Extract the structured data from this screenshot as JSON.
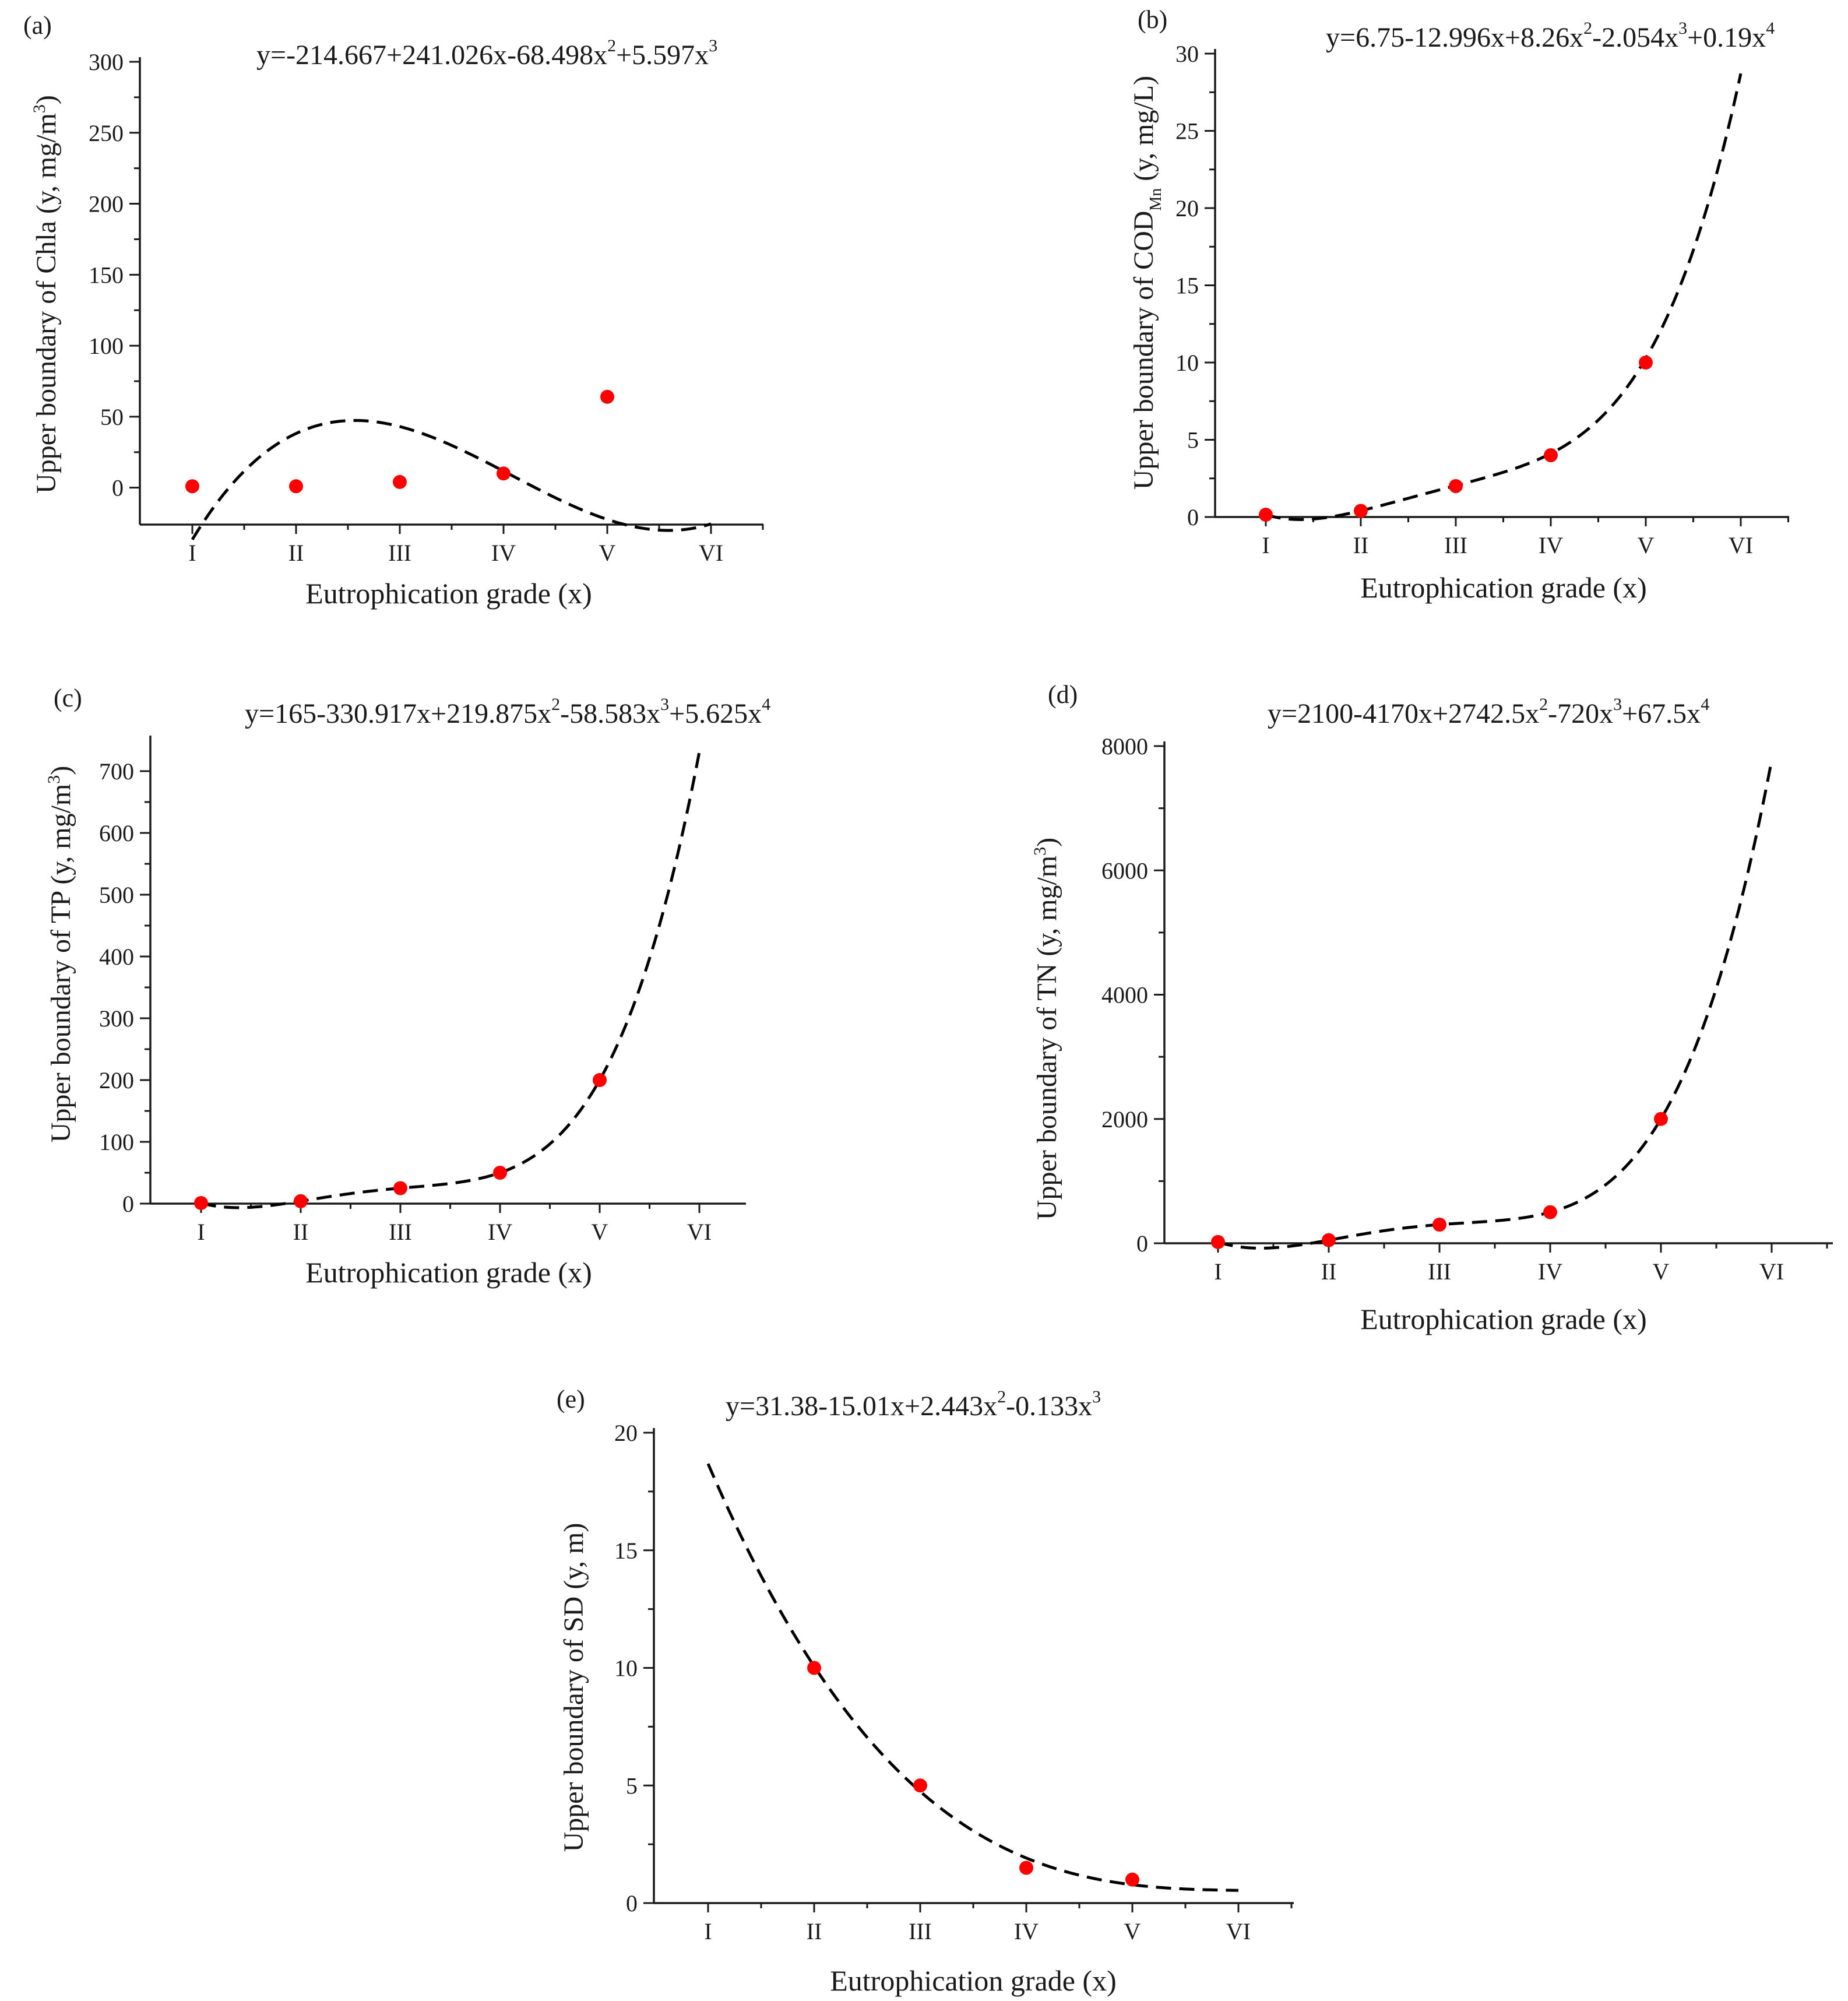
{
  "figure": {
    "grade_labels": [
      "I",
      "II",
      "III",
      "IV",
      "V",
      "VI"
    ]
  },
  "chart_data": [
    {
      "id": "a",
      "type": "scatter",
      "panel_label": "(a)",
      "equation": {
        "base": "y=-214.667+241.026x-68.498x",
        "p1": "2",
        "m1": "+5.597x",
        "p2": "3",
        "m2": "",
        "p3": ""
      },
      "coeffs": [
        -214.667,
        241.026,
        -68.498,
        5.597
      ],
      "xlabel": "Eutrophication grade (x)",
      "ylabel": {
        "pre": "Upper boundary of Chla (y, mg/m",
        "sup": "3",
        "post": ")"
      },
      "categories": [
        "I",
        "II",
        "III",
        "IV",
        "V",
        "VI"
      ],
      "x": [
        1,
        2,
        3,
        4,
        5
      ],
      "values": [
        1,
        1,
        4,
        10,
        64
      ],
      "ylim": [
        -26,
        300
      ],
      "yticks": [
        0,
        50,
        100,
        150,
        200,
        250,
        300
      ],
      "curve_x_range": [
        1,
        6
      ],
      "colors": {
        "points": "#ff0000",
        "fit": "#000000"
      }
    },
    {
      "id": "b",
      "type": "scatter",
      "panel_label": "(b)",
      "equation": {
        "base": "y=6.75-12.996x+8.26x",
        "p1": "2",
        "m1": "-2.054x",
        "p2": "3",
        "m2": "+0.19x",
        "p3": "4"
      },
      "coeffs": [
        6.75,
        -12.996,
        8.26,
        -2.054,
        0.19
      ],
      "xlabel": "Eutrophication grade (x)",
      "ylabel": {
        "pre": "Upper boundary of COD",
        "sub": "Mn",
        "post": " (y, mg/L)"
      },
      "categories": [
        "I",
        "II",
        "III",
        "IV",
        "V",
        "VI"
      ],
      "x": [
        1,
        2,
        3,
        4,
        5
      ],
      "values": [
        0.15,
        0.4,
        2,
        4,
        10
      ],
      "ylim": [
        0,
        30
      ],
      "yticks": [
        0,
        5,
        10,
        15,
        20,
        25,
        30
      ],
      "curve_x_range": [
        1,
        6
      ],
      "colors": {
        "points": "#ff0000",
        "fit": "#000000"
      }
    },
    {
      "id": "c",
      "type": "scatter",
      "panel_label": "(c)",
      "equation": {
        "base": "y=165-330.917x+219.875x",
        "p1": "2",
        "m1": "-58.583x",
        "p2": "3",
        "m2": "+5.625x",
        "p3": "4"
      },
      "coeffs": [
        165,
        -330.917,
        219.875,
        -58.583,
        5.625
      ],
      "xlabel": "Eutrophication grade (x)",
      "ylabel": {
        "pre": "Upper boundary of TP (y, mg/m",
        "sup": "3",
        "post": ")"
      },
      "categories": [
        "I",
        "II",
        "III",
        "IV",
        "V",
        "VI"
      ],
      "x": [
        1,
        2,
        3,
        4,
        5
      ],
      "values": [
        1,
        4,
        25,
        50,
        200
      ],
      "ylim": [
        0,
        750
      ],
      "yticks": [
        0,
        100,
        200,
        300,
        400,
        500,
        600,
        700
      ],
      "curve_x_range": [
        1,
        6
      ],
      "colors": {
        "points": "#ff0000",
        "fit": "#000000"
      }
    },
    {
      "id": "d",
      "type": "scatter",
      "panel_label": "(d)",
      "equation": {
        "base": "y=2100-4170x+2742.5x",
        "p1": "2",
        "m1": "-720x",
        "p2": "3",
        "m2": "+67.5x",
        "p3": "4"
      },
      "coeffs": [
        2100,
        -4170,
        2742.5,
        -720,
        67.5
      ],
      "xlabel": "Eutrophication grade (x)",
      "ylabel": {
        "pre": "Upper boundary of TN (y, mg/m",
        "sup": "3",
        "post": ")"
      },
      "categories": [
        "I",
        "II",
        "III",
        "IV",
        "V",
        "VI"
      ],
      "x": [
        1,
        2,
        3,
        4,
        5
      ],
      "values": [
        20,
        50,
        300,
        500,
        2000
      ],
      "ylim": [
        0,
        8000
      ],
      "yticks": [
        0,
        2000,
        4000,
        6000,
        8000
      ],
      "curve_x_range": [
        1,
        6
      ],
      "colors": {
        "points": "#ff0000",
        "fit": "#000000"
      }
    },
    {
      "id": "e",
      "type": "scatter",
      "panel_label": "(e)",
      "equation": {
        "base": "y=31.38-15.01x+2.443x",
        "p1": "2",
        "m1": "-0.133x",
        "p2": "3",
        "m2": "",
        "p3": ""
      },
      "coeffs": [
        31.38,
        -15.01,
        2.443,
        -0.133
      ],
      "xlabel": "Eutrophication grade (x)",
      "ylabel": {
        "pre": "Upper boundary of SD (y, m)"
      },
      "categories": [
        "I",
        "II",
        "III",
        "IV",
        "V",
        "VI"
      ],
      "x": [
        2,
        3,
        4,
        5
      ],
      "values": [
        10,
        5,
        1.5,
        1
      ],
      "ylim": [
        0,
        20
      ],
      "yticks": [
        0,
        5,
        10,
        15,
        20
      ],
      "curve_x_range": [
        1,
        6
      ],
      "colors": {
        "points": "#ff0000",
        "fit": "#000000"
      }
    }
  ]
}
